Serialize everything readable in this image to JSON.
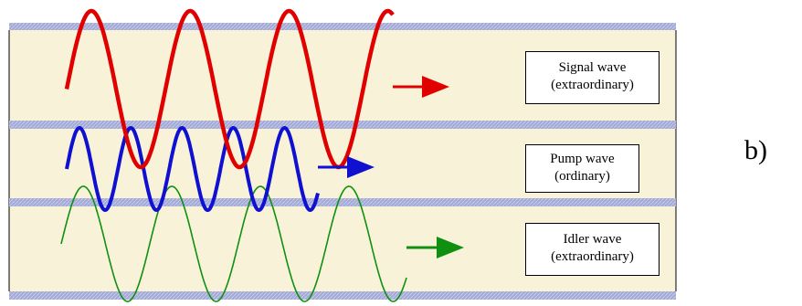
{
  "panel_label": "b)",
  "colors": {
    "background": "#ffffff",
    "layer_fill": "#f7f2d8",
    "stripe": "#a3a9d6",
    "box_border": "#000000"
  },
  "waves": [
    {
      "id": "signal",
      "name": "Signal wave",
      "polarization": "(extraordinary)",
      "color": "#e00000",
      "periods": 3.3,
      "line_weight": "thick",
      "arrow_color": "#e00000"
    },
    {
      "id": "pump",
      "name": "Pump wave",
      "polarization": "(ordinary)",
      "color": "#1010d0",
      "periods": 4.9,
      "line_weight": "thick",
      "arrow_color": "#1010d0"
    },
    {
      "id": "idler",
      "name": "Idler wave",
      "polarization": "(extraordinary)",
      "color": "#109010",
      "periods": 3.9,
      "line_weight": "thin",
      "arrow_color": "#109010"
    }
  ]
}
